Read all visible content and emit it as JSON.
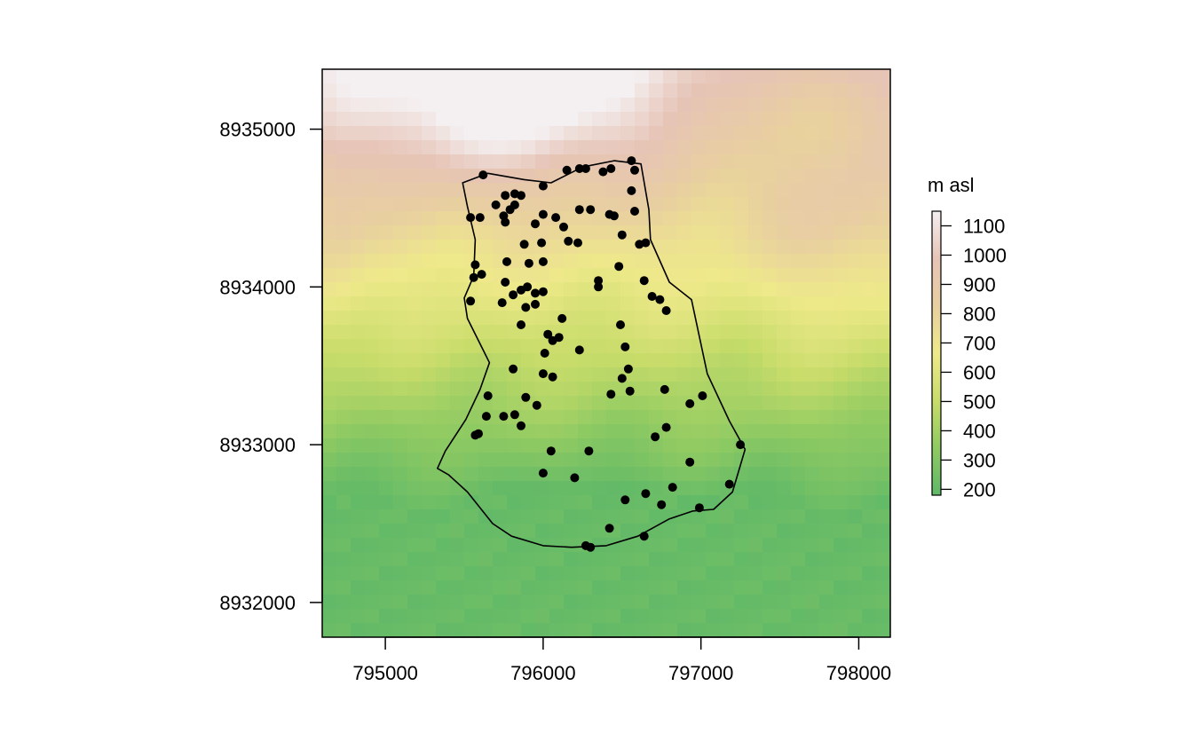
{
  "chart_data": {
    "type": "scatter",
    "title": "",
    "xlabel": "",
    "ylabel": "",
    "xlim": [
      794600,
      798200
    ],
    "ylim": [
      8931780,
      8935380
    ],
    "x_ticks": [
      795000,
      796000,
      797000,
      798000
    ],
    "y_ticks": [
      8932000,
      8933000,
      8934000,
      8935000
    ],
    "x_tick_labels": [
      "795000",
      "796000",
      "797000",
      "798000"
    ],
    "y_tick_labels": [
      "8932000",
      "8933000",
      "8934000",
      "8935000"
    ],
    "raster": {
      "description": "elevation raster (terrain colour scale)",
      "legend_title": "m asl",
      "legend_ticks": [
        200,
        300,
        400,
        500,
        600,
        700,
        800,
        900,
        1000,
        1100
      ],
      "legend_tick_labels": [
        "200",
        "300",
        "400",
        "500",
        "600",
        "700",
        "800",
        "900",
        "1000",
        "1100"
      ],
      "value_range": [
        180,
        1150
      ],
      "colors": [
        "#5fb868",
        "#8fca62",
        "#c8dc6a",
        "#eee98a",
        "#e8cfa0",
        "#e6c4b6",
        "#f4eff0"
      ]
    },
    "boundary": [
      [
        795490,
        8934660
      ],
      [
        795650,
        8934720
      ],
      [
        795880,
        8934680
      ],
      [
        796050,
        8934660
      ],
      [
        796250,
        8934760
      ],
      [
        796450,
        8934800
      ],
      [
        796620,
        8934780
      ],
      [
        796670,
        8934490
      ],
      [
        796680,
        8934300
      ],
      [
        796800,
        8934030
      ],
      [
        796940,
        8933920
      ],
      [
        797040,
        8933450
      ],
      [
        797180,
        8933150
      ],
      [
        797280,
        8932970
      ],
      [
        797200,
        8932700
      ],
      [
        797080,
        8932590
      ],
      [
        796950,
        8932580
      ],
      [
        796800,
        8932530
      ],
      [
        796600,
        8932420
      ],
      [
        796400,
        8932360
      ],
      [
        796180,
        8932350
      ],
      [
        796000,
        8932360
      ],
      [
        795800,
        8932420
      ],
      [
        795680,
        8932500
      ],
      [
        795520,
        8932700
      ],
      [
        795400,
        8932810
      ],
      [
        795330,
        8932850
      ],
      [
        795380,
        8932960
      ],
      [
        795510,
        8933160
      ],
      [
        795600,
        8933350
      ],
      [
        795660,
        8933520
      ],
      [
        795620,
        8933600
      ],
      [
        795520,
        8933800
      ],
      [
        795500,
        8933930
      ],
      [
        795560,
        8934070
      ],
      [
        795570,
        8934300
      ],
      [
        795520,
        8934510
      ]
    ],
    "points": {
      "x": [
        795620,
        795700,
        795760,
        795820,
        795860,
        796000,
        796150,
        796230,
        796270,
        796380,
        796430,
        796560,
        796580,
        795540,
        795600,
        795750,
        795790,
        795820,
        795950,
        796000,
        796080,
        796130,
        796230,
        796300,
        796420,
        796450,
        796560,
        796580,
        795760,
        795880,
        795990,
        796160,
        796220,
        796500,
        796610,
        796650,
        795570,
        795770,
        795910,
        796000,
        796480,
        795560,
        795610,
        795760,
        795860,
        795900,
        795950,
        796000,
        796350,
        796350,
        796640,
        796690,
        796740,
        795540,
        795740,
        795810,
        795890,
        795950,
        796120,
        796780,
        795860,
        796030,
        796060,
        796100,
        796490,
        796010,
        796230,
        796520,
        795810,
        796000,
        796060,
        796540,
        796500,
        795650,
        795890,
        796430,
        796550,
        796770,
        797010,
        795640,
        795750,
        795820,
        795960,
        796930,
        795860,
        795570,
        795590,
        796710,
        796780,
        796050,
        796290,
        797250,
        796930,
        796000,
        796200,
        797180,
        796820,
        796650,
        796520,
        796750,
        796300,
        796990,
        796420,
        796640,
        796270
      ],
      "y": [
        8934710,
        8934520,
        8934580,
        8934590,
        8934580,
        8934640,
        8934740,
        8934750,
        8934750,
        8934730,
        8934750,
        8934800,
        8934740,
        8934440,
        8934440,
        8934450,
        8934490,
        8934520,
        8934400,
        8934460,
        8934440,
        8934380,
        8934490,
        8934490,
        8934460,
        8934450,
        8934610,
        8934480,
        8934410,
        8934270,
        8934280,
        8934290,
        8934280,
        8934330,
        8934270,
        8934280,
        8934140,
        8934160,
        8934150,
        8934160,
        8934130,
        8934060,
        8934080,
        8934030,
        8933980,
        8934000,
        8933960,
        8933970,
        8934040,
        8934000,
        8934040,
        8933940,
        8933920,
        8933910,
        8933900,
        8933950,
        8933870,
        8933890,
        8933800,
        8933850,
        8933760,
        8933700,
        8933660,
        8933680,
        8933760,
        8933580,
        8933600,
        8933620,
        8933480,
        8933450,
        8933430,
        8933480,
        8933420,
        8933310,
        8933300,
        8933320,
        8933340,
        8933350,
        8933310,
        8933180,
        8933180,
        8933190,
        8933250,
        8933260,
        8933120,
        8933060,
        8933070,
        8933050,
        8933110,
        8932960,
        8932960,
        8933000,
        8932890,
        8932820,
        8932790,
        8932750,
        8932730,
        8932690,
        8932650,
        8932620,
        8932350,
        8932600,
        8932470,
        8932420,
        8932360
      ]
    }
  }
}
